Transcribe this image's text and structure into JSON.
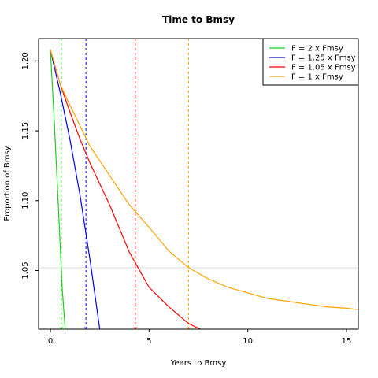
{
  "chart_data": {
    "type": "line",
    "title": "Time to Bmsy",
    "xlabel": "Years to Bmsy",
    "ylabel": "Proportion of Bmsy",
    "xlim": [
      -0.6,
      15.6
    ],
    "ylim": [
      1.008,
      1.216
    ],
    "x_ticks": [
      0,
      5,
      10,
      15
    ],
    "y_ticks": [
      1.05,
      1.1,
      1.15,
      1.2
    ],
    "hline": 1.052,
    "hline_color": "#dddddd",
    "legend_position": "top-right",
    "series": [
      {
        "name": "F = 2 x Fmsy",
        "color": "#22cc22",
        "x": [
          0,
          0.2,
          0.4,
          0.6,
          0.75
        ],
        "y": [
          1.208,
          1.156,
          1.096,
          1.036,
          1.008
        ],
        "vline": 0.55
      },
      {
        "name": "F = 1.25 x Fmsy",
        "color": "#0000ff",
        "x": [
          0,
          0.5,
          1.0,
          1.5,
          2.0,
          2.5
        ],
        "y": [
          1.208,
          1.177,
          1.143,
          1.104,
          1.058,
          1.008
        ],
        "vline": 1.8
      },
      {
        "name": "F = 1.05 x Fmsy",
        "color": "#ff0000",
        "x": [
          0,
          0.5,
          1.0,
          1.5,
          2.0,
          3.0,
          4.0,
          5.0,
          6.0,
          7.0,
          7.6
        ],
        "y": [
          1.208,
          1.183,
          1.163,
          1.144,
          1.127,
          1.097,
          1.063,
          1.038,
          1.024,
          1.012,
          1.008
        ],
        "vline": 4.3
      },
      {
        "name": "F = 1 x Fmsy",
        "color": "#ffa500",
        "x": [
          0,
          0.5,
          1,
          2,
          3,
          4,
          5,
          6,
          7,
          8,
          9,
          10,
          11,
          12,
          13,
          14,
          15,
          15.6
        ],
        "y": [
          1.208,
          1.183,
          1.168,
          1.139,
          1.118,
          1.097,
          1.081,
          1.064,
          1.052,
          1.044,
          1.038,
          1.034,
          1.03,
          1.028,
          1.026,
          1.024,
          1.023,
          1.022
        ],
        "vline": 7.0
      }
    ]
  }
}
